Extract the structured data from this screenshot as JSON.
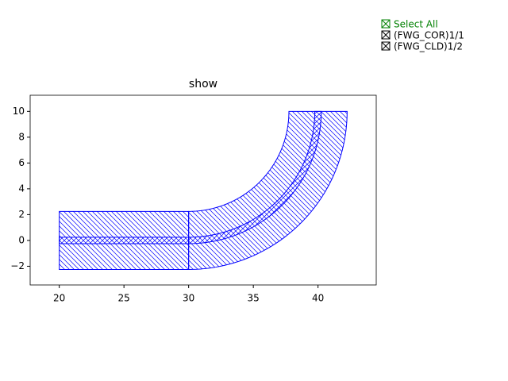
{
  "chart_data": {
    "type": "polygons",
    "title": "show",
    "xlim": [
      17.75,
      44.5
    ],
    "ylim": [
      -3.45,
      11.25
    ],
    "xticks": [
      20,
      25,
      30,
      35,
      40
    ],
    "yticks": [
      {
        "value": -2,
        "label": "−2"
      },
      0,
      2,
      4,
      6,
      8,
      10
    ],
    "series": [
      {
        "name": "(FWG_COR)1/1",
        "color": "#0000ff",
        "hatch": "/",
        "shapes": [
          {
            "kind": "rect",
            "x": [
              20,
              30
            ],
            "y": [
              -0.25,
              0.25
            ]
          },
          {
            "kind": "arc",
            "center": [
              30,
              10
            ],
            "r": [
              9.75,
              10.25
            ],
            "angles": [
              -90,
              0
            ]
          }
        ]
      },
      {
        "name": "(FWG_CLD)1/2",
        "color": "#0000ff",
        "hatch": "\\",
        "shapes": [
          {
            "kind": "rect",
            "x": [
              20,
              30
            ],
            "y": [
              -2.25,
              2.25
            ]
          },
          {
            "kind": "arc",
            "center": [
              30,
              10
            ],
            "r": [
              7.75,
              12.25
            ],
            "angles": [
              -90,
              0
            ]
          }
        ]
      }
    ],
    "select_all": {
      "label": "Select All",
      "color": "#008000"
    },
    "checked": true
  }
}
